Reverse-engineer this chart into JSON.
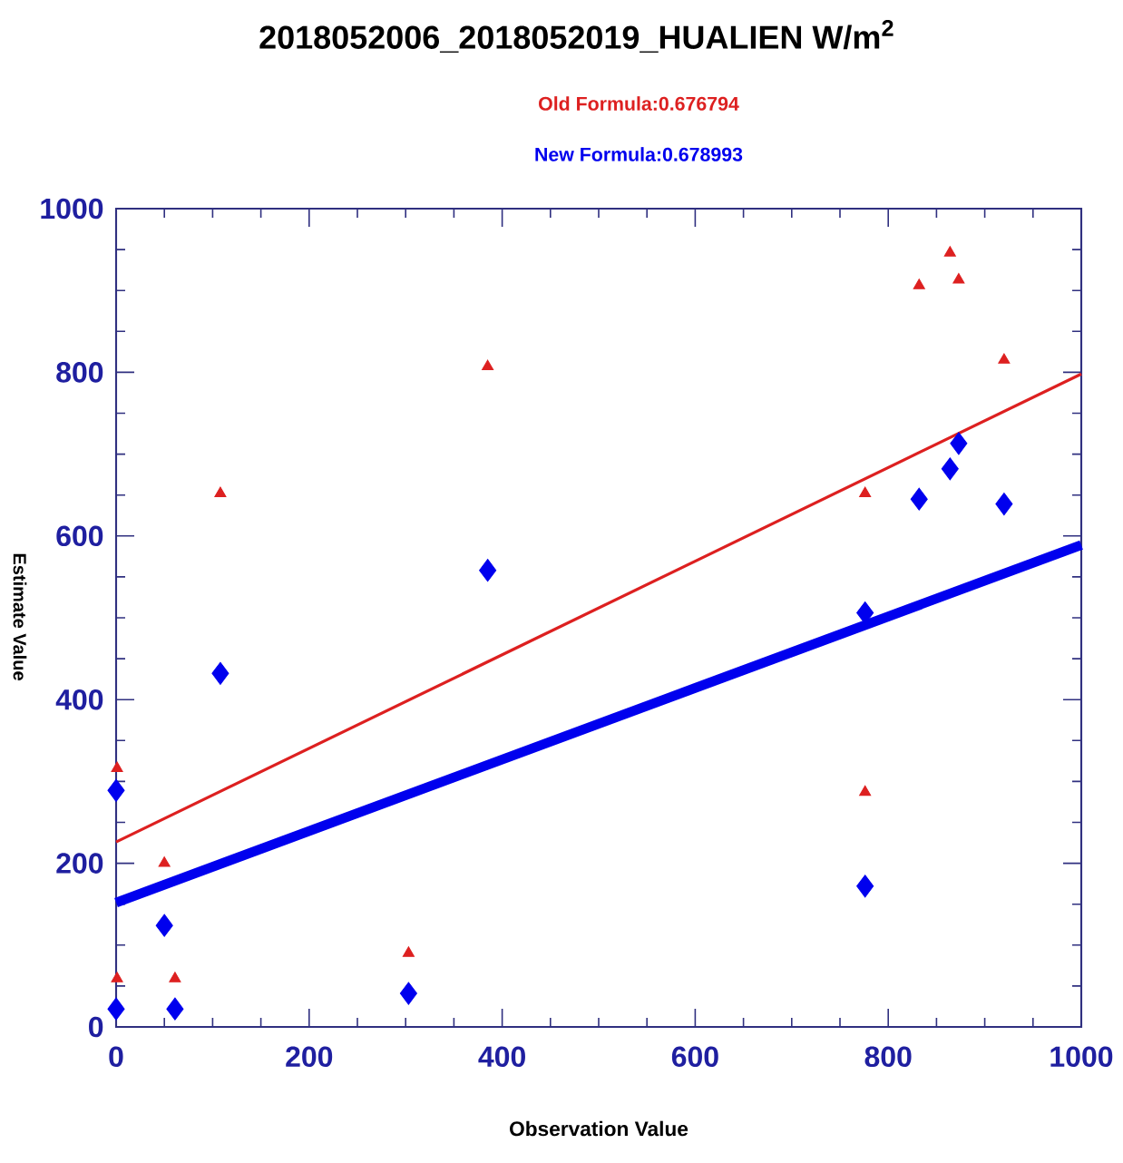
{
  "chart_data": {
    "type": "scatter",
    "title": "2018052006_2018052019_HUALIEN   W/m$^{2}$",
    "xlabel": "Observation Value",
    "ylabel": "Estimate Value",
    "xlim": [
      0,
      1000
    ],
    "ylim": [
      0,
      1000
    ],
    "xticks": [
      0,
      200,
      400,
      600,
      800,
      1000
    ],
    "yticks": [
      0,
      200,
      400,
      600,
      800,
      1000
    ],
    "grid": false,
    "series": [
      {
        "name": "Old Formula:0.676794",
        "marker": "triangle",
        "color": "#dd2020",
        "x": [
          1,
          1,
          50,
          61,
          108,
          303,
          385,
          776,
          776,
          832,
          864,
          873,
          920
        ],
        "values": [
          316,
          59,
          200,
          59,
          652,
          90,
          807,
          652,
          287,
          906,
          946,
          913,
          815
        ]
      },
      {
        "name": "New Formula:0.678993",
        "marker": "diamond",
        "color": "#0000ee",
        "x": [
          0,
          0,
          50,
          61,
          108,
          303,
          385,
          776,
          776,
          832,
          864,
          873,
          920
        ],
        "values": [
          289,
          22,
          124,
          22,
          432,
          41,
          558,
          506,
          172,
          645,
          682,
          713,
          639
        ]
      },
      {
        "type": "line",
        "line_style": "solid",
        "color": "#dd2020",
        "x": [
          0,
          1000
        ],
        "values": [
          226,
          798
        ]
      },
      {
        "type": "line",
        "line_style": "solid",
        "color": "#0000ee",
        "x": [
          0,
          1000
        ],
        "values": [
          152,
          589
        ]
      }
    ]
  }
}
